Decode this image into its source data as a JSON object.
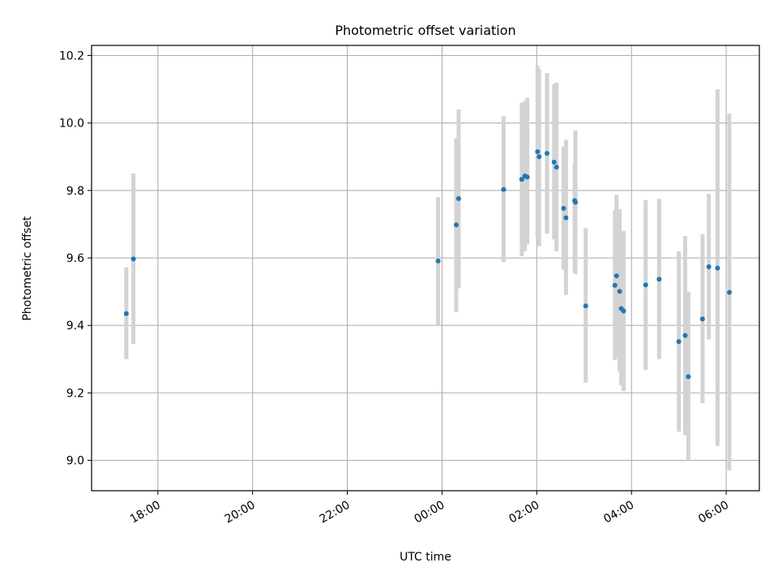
{
  "chart_data": {
    "type": "scatter",
    "title": "Photometric offset variation",
    "xlabel": "UTC time",
    "ylabel": "Photometric offset",
    "x_ticks": [
      "18:00",
      "20:00",
      "22:00",
      "00:00",
      "02:00",
      "04:00",
      "06:00"
    ],
    "x_tick_hours": [
      18,
      20,
      22,
      24,
      26,
      28,
      30
    ],
    "xlim_hours": [
      16.6,
      30.7
    ],
    "y_ticks": [
      "9.0",
      "9.2",
      "9.4",
      "9.6",
      "9.8",
      "10.0",
      "10.2"
    ],
    "y_tick_values": [
      9.0,
      9.2,
      9.4,
      9.6,
      9.8,
      10.0,
      10.2
    ],
    "ylim": [
      8.91,
      10.23
    ],
    "grid": true,
    "x_tick_rotation_deg": 30,
    "point_color": "#1f77b4",
    "errorbar_color": "#d3d3d3",
    "points": [
      {
        "t": "17:20",
        "y": 9.435,
        "lo": 9.3,
        "hi": 9.572
      },
      {
        "t": "17:29",
        "y": 9.597,
        "lo": 9.345,
        "hi": 9.85
      },
      {
        "t": "23:55",
        "y": 9.591,
        "lo": 9.4,
        "hi": 9.78
      },
      {
        "t": "00:18",
        "y": 9.698,
        "lo": 9.44,
        "hi": 9.955
      },
      {
        "t": "00:21",
        "y": 9.776,
        "lo": 9.51,
        "hi": 10.04
      },
      {
        "t": "01:18",
        "y": 9.803,
        "lo": 9.588,
        "hi": 10.02
      },
      {
        "t": "01:41",
        "y": 9.833,
        "lo": 9.605,
        "hi": 10.06
      },
      {
        "t": "01:45",
        "y": 9.843,
        "lo": 9.62,
        "hi": 10.065
      },
      {
        "t": "01:48",
        "y": 9.84,
        "lo": 9.64,
        "hi": 10.075
      },
      {
        "t": "02:01",
        "y": 9.915,
        "lo": 9.66,
        "hi": 10.17
      },
      {
        "t": "02:03",
        "y": 9.9,
        "lo": 9.635,
        "hi": 10.16
      },
      {
        "t": "02:13",
        "y": 9.91,
        "lo": 9.672,
        "hi": 10.148
      },
      {
        "t": "02:22",
        "y": 9.884,
        "lo": 9.655,
        "hi": 10.115
      },
      {
        "t": "02:25",
        "y": 9.869,
        "lo": 9.62,
        "hi": 10.12
      },
      {
        "t": "02:34",
        "y": 9.747,
        "lo": 9.565,
        "hi": 9.93
      },
      {
        "t": "02:37",
        "y": 9.719,
        "lo": 9.49,
        "hi": 9.95
      },
      {
        "t": "02:48",
        "y": 9.77,
        "lo": 9.56,
        "hi": 9.88
      },
      {
        "t": "02:49",
        "y": 9.765,
        "lo": 9.552,
        "hi": 9.978
      },
      {
        "t": "03:02",
        "y": 9.458,
        "lo": 9.23,
        "hi": 9.688
      },
      {
        "t": "03:39",
        "y": 9.519,
        "lo": 9.298,
        "hi": 9.742
      },
      {
        "t": "03:41",
        "y": 9.547,
        "lo": 9.306,
        "hi": 9.787
      },
      {
        "t": "03:45",
        "y": 9.501,
        "lo": 9.264,
        "hi": 9.745
      },
      {
        "t": "03:47",
        "y": 9.45,
        "lo": 9.222,
        "hi": 9.68
      },
      {
        "t": "03:50",
        "y": 9.443,
        "lo": 9.205,
        "hi": 9.68
      },
      {
        "t": "04:18",
        "y": 9.52,
        "lo": 9.268,
        "hi": 9.772
      },
      {
        "t": "04:35",
        "y": 9.537,
        "lo": 9.3,
        "hi": 9.775
      },
      {
        "t": "05:00",
        "y": 9.352,
        "lo": 9.085,
        "hi": 9.62
      },
      {
        "t": "05:08",
        "y": 9.37,
        "lo": 9.075,
        "hi": 9.665
      },
      {
        "t": "05:12",
        "y": 9.248,
        "lo": 9.0,
        "hi": 9.5
      },
      {
        "t": "05:30",
        "y": 9.419,
        "lo": 9.17,
        "hi": 9.67
      },
      {
        "t": "05:38",
        "y": 9.574,
        "lo": 9.358,
        "hi": 9.79
      },
      {
        "t": "05:49",
        "y": 9.57,
        "lo": 9.043,
        "hi": 10.1
      },
      {
        "t": "06:04",
        "y": 9.498,
        "lo": 8.97,
        "hi": 10.028
      }
    ]
  }
}
